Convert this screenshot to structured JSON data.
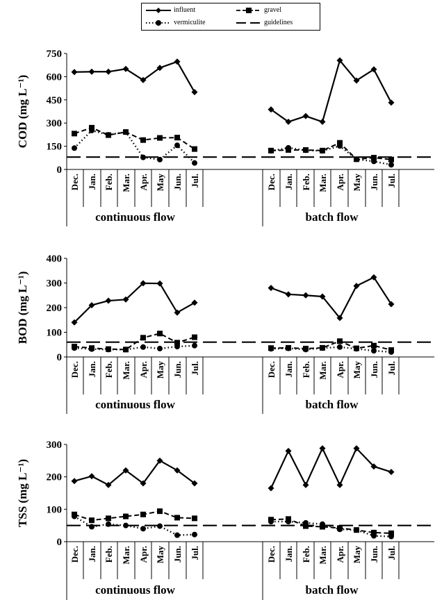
{
  "legend": {
    "influent": "influent",
    "gravel": "gravel",
    "vermiculite": "vermiculite",
    "guidelines": "guidelines"
  },
  "group_labels": [
    "continuous flow",
    "batch flow"
  ],
  "chart_data": [
    {
      "type": "line",
      "title": "",
      "ylabel": "COD  (mg L⁻¹)",
      "ylim": [
        0,
        750
      ],
      "yticks": [
        "0",
        "150",
        "300",
        "450",
        "600",
        "750"
      ],
      "groups": [
        "continuous flow",
        "batch flow"
      ],
      "categories": [
        "Dec.",
        "Jan.",
        "Feb.",
        "Mar.",
        "Apr.",
        "May",
        "Jun.",
        "Jul."
      ],
      "series": [
        {
          "name": "influent",
          "continuous": [
            630,
            632,
            632,
            650,
            578,
            657,
            697,
            500
          ],
          "batch": [
            388,
            308,
            345,
            308,
            705,
            575,
            647,
            432
          ]
        },
        {
          "name": "gravel",
          "continuous": [
            232,
            270,
            222,
            242,
            190,
            204,
            206,
            132
          ],
          "batch": [
            122,
            126,
            126,
            122,
            172,
            66,
            76,
            64
          ]
        },
        {
          "name": "vermiculite",
          "continuous": [
            138,
            252,
            224,
            242,
            78,
            64,
            156,
            42
          ],
          "batch": [
            120,
            140,
            124,
            120,
            152,
            66,
            52,
            30
          ]
        },
        {
          "name": "guidelines",
          "continuous": [
            80,
            80,
            80,
            80,
            80,
            80,
            80,
            80
          ],
          "batch": [
            80,
            80,
            80,
            80,
            80,
            80,
            80,
            80
          ]
        }
      ]
    },
    {
      "type": "line",
      "title": "",
      "ylabel": "BOD  (mg L⁻¹)",
      "ylim": [
        0,
        400
      ],
      "yticks": [
        "0",
        "100",
        "200",
        "300",
        "400"
      ],
      "groups": [
        "continuous flow",
        "batch flow"
      ],
      "categories": [
        "Dec.",
        "Jan.",
        "Feb.",
        "Mar.",
        "Apr.",
        "May",
        "Jun.",
        "Jul."
      ],
      "series": [
        {
          "name": "influent",
          "continuous": [
            140,
            210,
            228,
            233,
            299,
            298,
            180,
            220
          ],
          "batch": [
            280,
            254,
            250,
            245,
            158,
            288,
            323,
            214
          ]
        },
        {
          "name": "gravel",
          "continuous": [
            42,
            36,
            32,
            30,
            78,
            95,
            58,
            80
          ],
          "batch": [
            36,
            37,
            34,
            37,
            64,
            35,
            46,
            28
          ]
        },
        {
          "name": "vermiculite",
          "continuous": [
            36,
            32,
            30,
            30,
            40,
            34,
            42,
            46
          ],
          "batch": [
            33,
            35,
            30,
            36,
            40,
            33,
            25,
            20
          ]
        },
        {
          "name": "guidelines",
          "continuous": [
            60,
            60,
            60,
            60,
            60,
            60,
            60,
            60
          ],
          "batch": [
            60,
            60,
            60,
            60,
            60,
            60,
            60,
            60
          ]
        }
      ]
    },
    {
      "type": "line",
      "title": "",
      "ylabel": "TSS  (mg L⁻¹)",
      "ylim": [
        0,
        300
      ],
      "yticks": [
        "0",
        "100",
        "200",
        "300"
      ],
      "groups": [
        "continuous flow",
        "batch flow"
      ],
      "categories": [
        "Dec.",
        "Jan.",
        "Feb.",
        "Mar.",
        "Apr.",
        "May",
        "Jun.",
        "Jul."
      ],
      "series": [
        {
          "name": "influent",
          "continuous": [
            187,
            202,
            175,
            220,
            180,
            250,
            220,
            180
          ],
          "batch": [
            165,
            280,
            175,
            288,
            175,
            288,
            232,
            215
          ]
        },
        {
          "name": "gravel",
          "continuous": [
            84,
            66,
            72,
            78,
            84,
            94,
            74,
            72
          ],
          "batch": [
            68,
            70,
            48,
            46,
            42,
            36,
            28,
            26
          ]
        },
        {
          "name": "vermiculite",
          "continuous": [
            78,
            46,
            54,
            50,
            40,
            48,
            20,
            22
          ],
          "batch": [
            62,
            62,
            58,
            54,
            38,
            36,
            18,
            16
          ]
        },
        {
          "name": "guidelines",
          "continuous": [
            50,
            50,
            50,
            50,
            50,
            50,
            50,
            50
          ],
          "batch": [
            50,
            50,
            50,
            50,
            50,
            50,
            50,
            50
          ]
        }
      ]
    }
  ]
}
